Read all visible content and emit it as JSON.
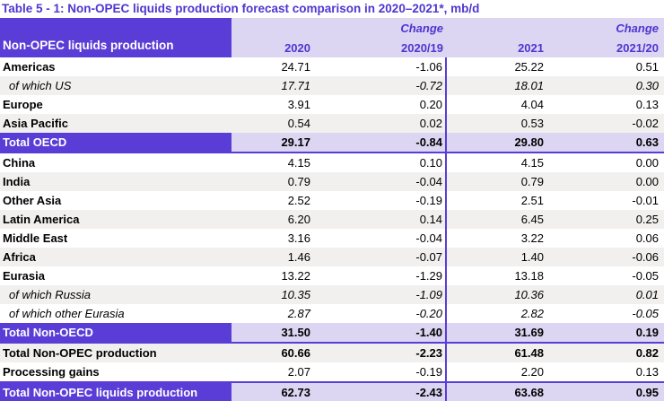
{
  "title": "Table 5 - 1: Non-OPEC liquids production forecast comparison in 2020–2021*, mb/d",
  "colors": {
    "header_fill": "#5a3dd6",
    "header_band": "#dcd6f3",
    "stripe": "#f1f0ef",
    "heading_text": "#4d36d0"
  },
  "table": {
    "corner_label": "Non-OPEC liquids production",
    "change_label": "Change",
    "columns": [
      "2020",
      "2020/19",
      "2021",
      "2021/20"
    ],
    "rows": [
      {
        "label": "Americas",
        "style": "normal",
        "shade": "white",
        "values": [
          "24.71",
          "-1.06",
          "25.22",
          "0.51"
        ]
      },
      {
        "label": "of which US",
        "style": "subitem",
        "shade": "gray",
        "values": [
          "17.71",
          "-0.72",
          "18.01",
          "0.30"
        ]
      },
      {
        "label": "Europe",
        "style": "normal",
        "shade": "white",
        "values": [
          "3.91",
          "0.20",
          "4.04",
          "0.13"
        ]
      },
      {
        "label": "Asia Pacific",
        "style": "normal",
        "shade": "gray",
        "values": [
          "0.54",
          "0.02",
          "0.53",
          "-0.02"
        ]
      },
      {
        "label": "Total OECD",
        "style": "total",
        "shade": "",
        "values": [
          "29.17",
          "-0.84",
          "29.80",
          "0.63"
        ]
      },
      {
        "label": "China",
        "style": "normal",
        "shade": "white",
        "values": [
          "4.15",
          "0.10",
          "4.15",
          "0.00"
        ]
      },
      {
        "label": "India",
        "style": "normal",
        "shade": "gray",
        "values": [
          "0.79",
          "-0.04",
          "0.79",
          "0.00"
        ]
      },
      {
        "label": "Other Asia",
        "style": "normal",
        "shade": "white",
        "values": [
          "2.52",
          "-0.19",
          "2.51",
          "-0.01"
        ]
      },
      {
        "label": "Latin America",
        "style": "normal",
        "shade": "gray",
        "values": [
          "6.20",
          "0.14",
          "6.45",
          "0.25"
        ]
      },
      {
        "label": "Middle East",
        "style": "normal",
        "shade": "white",
        "values": [
          "3.16",
          "-0.04",
          "3.22",
          "0.06"
        ]
      },
      {
        "label": "Africa",
        "style": "normal",
        "shade": "gray",
        "values": [
          "1.46",
          "-0.07",
          "1.40",
          "-0.06"
        ]
      },
      {
        "label": "Eurasia",
        "style": "normal",
        "shade": "white",
        "values": [
          "13.22",
          "-1.29",
          "13.18",
          "-0.05"
        ]
      },
      {
        "label": "of which Russia",
        "style": "subitem",
        "shade": "gray",
        "values": [
          "10.35",
          "-1.09",
          "10.36",
          "0.01"
        ]
      },
      {
        "label": "of which other Eurasia",
        "style": "subitem",
        "shade": "white",
        "values": [
          "2.87",
          "-0.20",
          "2.82",
          "-0.05"
        ]
      },
      {
        "label": "Total Non-OECD",
        "style": "total",
        "shade": "",
        "values": [
          "31.50",
          "-1.40",
          "31.69",
          "0.19"
        ]
      },
      {
        "label": "Total Non-OPEC production",
        "style": "summary",
        "shade": "",
        "values": [
          "60.66",
          "-2.23",
          "61.48",
          "0.82"
        ]
      },
      {
        "label": "Processing gains",
        "style": "normal",
        "shade": "white",
        "values": [
          "2.07",
          "-0.19",
          "2.20",
          "0.13"
        ]
      },
      {
        "label": "Total Non-OPEC liquids production",
        "style": "total topline",
        "shade": "",
        "values": [
          "62.73",
          "-2.43",
          "63.68",
          "0.95"
        ]
      }
    ]
  }
}
